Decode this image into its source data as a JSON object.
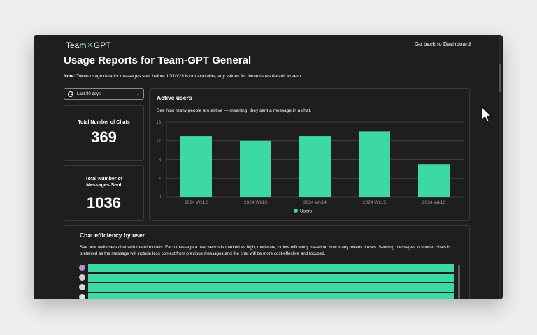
{
  "header": {
    "logo_left": "Team",
    "logo_mark": "✕",
    "logo_right": "GPT",
    "back_link": "Go back to Dashboard"
  },
  "page": {
    "title": "Usage Reports for Team-GPT General",
    "note_prefix": "Note:",
    "note_text": " Token usage data for messages sent before 10/10/23 is not available; any values for these dates default to zero."
  },
  "filter": {
    "selected": "Last 30 days"
  },
  "stats": {
    "chats_label": "Total Number of Chats",
    "chats_value": "369",
    "messages_label_1": "Total Number of",
    "messages_label_2": "Messages Sent",
    "messages_value": "1036"
  },
  "active_users": {
    "title": "Active users",
    "subtitle": "See how many people are active — meaning, they sent a message in a chat."
  },
  "chart_data": {
    "type": "bar",
    "categories": [
      "2024 Wk12",
      "2024 Wk13",
      "2024 Wk14",
      "2024 Wk15",
      "2024 Wk16"
    ],
    "series": [
      {
        "name": "Users",
        "values": [
          13,
          12,
          13,
          14,
          7
        ]
      }
    ],
    "ylim": [
      0,
      16
    ],
    "yticks": [
      0,
      4,
      8,
      12,
      16
    ],
    "grid": true,
    "legend": "bottom",
    "color": "#3dd9a3"
  },
  "efficiency": {
    "title": "Chat efficiency by user",
    "description": "See how well users chat with the AI models. Each message a user sends is marked as high, moderate, or low efficiency based on how many tokens it uses. Sending messages in shorter chats is preferred as the message will include less context from previous messages and the chat will be more cost-effective and focused.",
    "bar_color": "#3dd9a3",
    "rows": [
      {
        "avatar_color": "#b98bd6"
      },
      {
        "avatar_color": "#cfcfcf"
      },
      {
        "avatar_color": "#d8d8d8"
      },
      {
        "avatar_color": "#e0e0e0"
      }
    ]
  }
}
